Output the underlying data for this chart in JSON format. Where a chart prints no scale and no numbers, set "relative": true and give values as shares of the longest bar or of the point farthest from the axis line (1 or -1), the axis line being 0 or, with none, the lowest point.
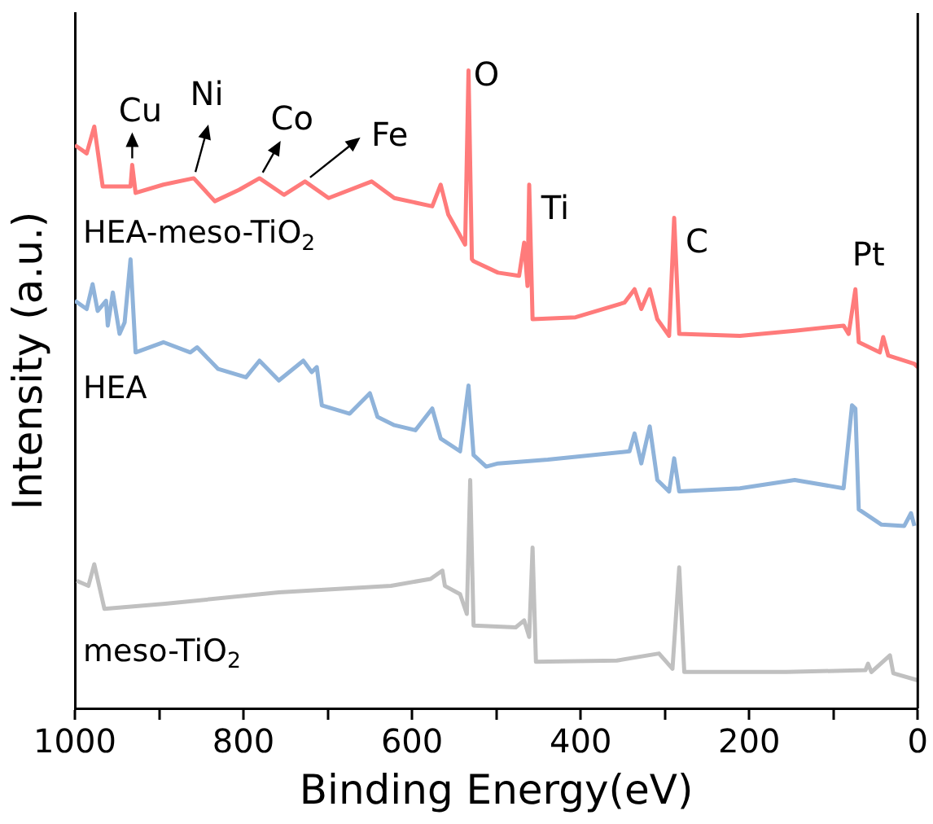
{
  "chart_data": {
    "type": "line",
    "xlabel": "Binding Energy(eV)",
    "ylabel": "Intensity (a.u.)",
    "relative": true,
    "xlim": [
      1000,
      0
    ],
    "xticks": [
      1000,
      {
        "value": 900,
        "label": null
      },
      800,
      {
        "value": 700,
        "label": null
      },
      600,
      {
        "value": 500,
        "label": null
      },
      400,
      {
        "value": 300,
        "label": null
      },
      200,
      {
        "value": 100,
        "label": null
      },
      0
    ],
    "series": [
      {
        "name": "HEA-meso-TiO$_{2}$",
        "color": "#ff7b7b",
        "x": [
          1000,
          986,
          977,
          967,
          934,
          932,
          928,
          895,
          859,
          834,
          805,
          781,
          752,
          727,
          699,
          648,
          621,
          576,
          566,
          557,
          537,
          533,
          529,
          527,
          498,
          473,
          467,
          463,
          461,
          457,
          406,
          348,
          336,
          328,
          318,
          309,
          295,
          289,
          283,
          211,
          146,
          88,
          82,
          74,
          70,
          45,
          41,
          35,
          4,
          0
        ],
        "values": [
          0.883,
          0.87,
          0.912,
          0.818,
          0.818,
          0.852,
          0.808,
          0.821,
          0.831,
          0.795,
          0.813,
          0.831,
          0.805,
          0.826,
          0.8,
          0.826,
          0.8,
          0.787,
          0.821,
          0.774,
          0.727,
          1.0,
          0.704,
          0.701,
          0.683,
          0.678,
          0.73,
          0.662,
          0.821,
          0.61,
          0.613,
          0.636,
          0.657,
          0.626,
          0.657,
          0.61,
          0.584,
          0.769,
          0.587,
          0.584,
          0.592,
          0.6,
          0.587,
          0.657,
          0.574,
          0.558,
          0.582,
          0.553,
          0.54,
          0.535
        ]
      },
      {
        "name": "HEA",
        "color": "#8fb3da",
        "x": [
          1000,
          986,
          979,
          973,
          963,
          961,
          955,
          947,
          941,
          934,
          928,
          895,
          863,
          855,
          830,
          797,
          781,
          758,
          729,
          719,
          713,
          707,
          674,
          650,
          641,
          621,
          596,
          576,
          566,
          543,
          533,
          527,
          512,
          498,
          439,
          342,
          336,
          328,
          318,
          309,
          295,
          289,
          283,
          211,
          146,
          88,
          78,
          74,
          70,
          43,
          16,
          8,
          4
        ],
        "values": [
          0.639,
          0.626,
          0.665,
          0.623,
          0.639,
          0.6,
          0.652,
          0.587,
          0.605,
          0.704,
          0.558,
          0.574,
          0.558,
          0.566,
          0.532,
          0.519,
          0.545,
          0.514,
          0.545,
          0.527,
          0.535,
          0.475,
          0.462,
          0.494,
          0.457,
          0.444,
          0.436,
          0.47,
          0.423,
          0.403,
          0.506,
          0.397,
          0.379,
          0.384,
          0.39,
          0.403,
          0.431,
          0.384,
          0.442,
          0.358,
          0.34,
          0.392,
          0.34,
          0.345,
          0.358,
          0.345,
          0.475,
          0.47,
          0.312,
          0.288,
          0.286,
          0.306,
          0.286
        ]
      },
      {
        "name": "meso-TiO$_{2}$",
        "color": "#c0c0c0",
        "x": [
          998,
          984,
          977,
          965,
          893,
          758,
          625,
          578,
          564,
          561,
          543,
          535,
          531,
          527,
          477,
          467,
          461,
          457,
          453,
          357,
          307,
          291,
          283,
          277,
          156,
          62,
          59,
          55,
          33,
          29,
          0
        ],
        "values": [
          0.2,
          0.192,
          0.226,
          0.156,
          0.164,
          0.182,
          0.192,
          0.203,
          0.216,
          0.192,
          0.179,
          0.148,
          0.358,
          0.13,
          0.127,
          0.138,
          0.112,
          0.252,
          0.073,
          0.075,
          0.086,
          0.062,
          0.221,
          0.057,
          0.057,
          0.06,
          0.07,
          0.057,
          0.083,
          0.055,
          0.044
        ]
      }
    ],
    "annotations": [
      {
        "text": "Cu",
        "x": 932,
        "y": 0.852
      },
      {
        "text": "Ni",
        "x": 859,
        "y": 0.831
      },
      {
        "text": "Co",
        "x": 781,
        "y": 0.831
      },
      {
        "text": "Fe",
        "x": 727,
        "y": 0.826
      },
      {
        "text": "O",
        "x": 533,
        "y": 1.0
      },
      {
        "text": "Ti",
        "x": 461,
        "y": 0.821
      },
      {
        "text": "C",
        "x": 289,
        "y": 0.769
      },
      {
        "text": "Pt",
        "x": 74,
        "y": 0.657
      }
    ]
  }
}
